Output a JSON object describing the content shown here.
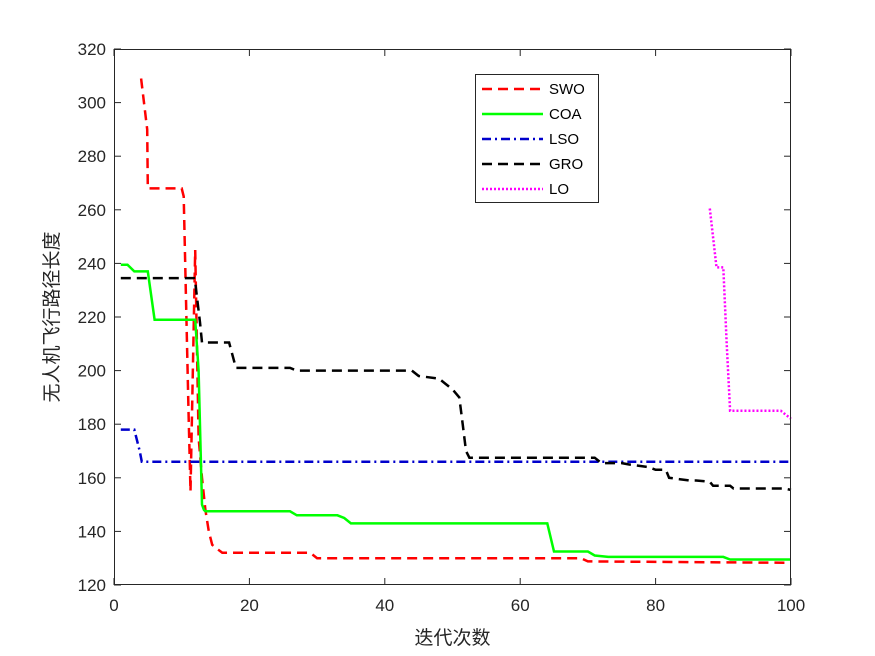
{
  "chart_data": {
    "type": "line",
    "title": "",
    "xlabel": "迭代次数",
    "ylabel": "无人机飞行路径长度",
    "xlim": [
      0,
      100
    ],
    "ylim": [
      120,
      320
    ],
    "xticks": [
      0,
      20,
      40,
      60,
      80,
      100
    ],
    "yticks": [
      120,
      140,
      160,
      180,
      200,
      220,
      240,
      260,
      280,
      300,
      320
    ],
    "grid": false,
    "legend_position": "top-right",
    "series": [
      {
        "name": "SWO",
        "color": "#ff0000",
        "style": "dashed",
        "x": [
          4,
          4.9,
          5,
          10,
          10.3,
          11,
          11.3,
          12,
          12.5,
          13,
          13.5,
          14,
          14.5,
          15.5,
          16,
          29,
          30,
          69,
          70,
          100
        ],
        "y": [
          309,
          290,
          268,
          268,
          265,
          185,
          155,
          245,
          175,
          160,
          148,
          140,
          135,
          133,
          132,
          132,
          130,
          130,
          128.8,
          128.3
        ]
      },
      {
        "name": "COA",
        "color": "#00ff00",
        "style": "solid",
        "x": [
          1,
          2,
          3,
          5,
          6,
          12,
          12.5,
          13,
          13.3,
          13.5,
          26,
          27,
          33,
          34,
          35,
          64,
          65,
          70,
          71,
          73,
          90,
          91,
          100
        ],
        "y": [
          239.5,
          239.5,
          237,
          237,
          219,
          219,
          200,
          150,
          148,
          147.5,
          147.5,
          146,
          146,
          145,
          143,
          143,
          132.5,
          132.5,
          131,
          130.5,
          130.5,
          129.5,
          129.5
        ]
      },
      {
        "name": "LSO",
        "color": "#0000cc",
        "style": "dashdot",
        "x": [
          1,
          3,
          3.8,
          4.1,
          100
        ],
        "y": [
          178,
          178,
          170,
          166,
          166
        ]
      },
      {
        "name": "GRO",
        "color": "#000000",
        "style": "dashed",
        "x": [
          1,
          11.8,
          12,
          12.7,
          13,
          17,
          18,
          26,
          27,
          44,
          45,
          48,
          49,
          50,
          51,
          51.5,
          52,
          52.5,
          71,
          72,
          75,
          76,
          79,
          80,
          81.5,
          82,
          85,
          86,
          88,
          88.5,
          91,
          91.5,
          99,
          100
        ],
        "y": [
          234.5,
          234.5,
          233,
          218,
          210.5,
          210.5,
          201,
          201,
          200,
          200,
          198,
          197,
          195,
          193,
          190,
          180,
          170,
          167.5,
          167.5,
          165.5,
          165.5,
          165,
          164,
          163,
          163,
          160,
          159,
          159,
          158.5,
          157,
          157,
          156,
          156,
          155.5
        ]
      },
      {
        "name": "LO",
        "color": "#ff00ff",
        "style": "dotted",
        "x": [
          88,
          89,
          90,
          90.5,
          91,
          98.5,
          99,
          100
        ],
        "y": [
          260.5,
          238.5,
          238.5,
          210,
          185,
          185,
          184,
          182
        ]
      }
    ]
  }
}
